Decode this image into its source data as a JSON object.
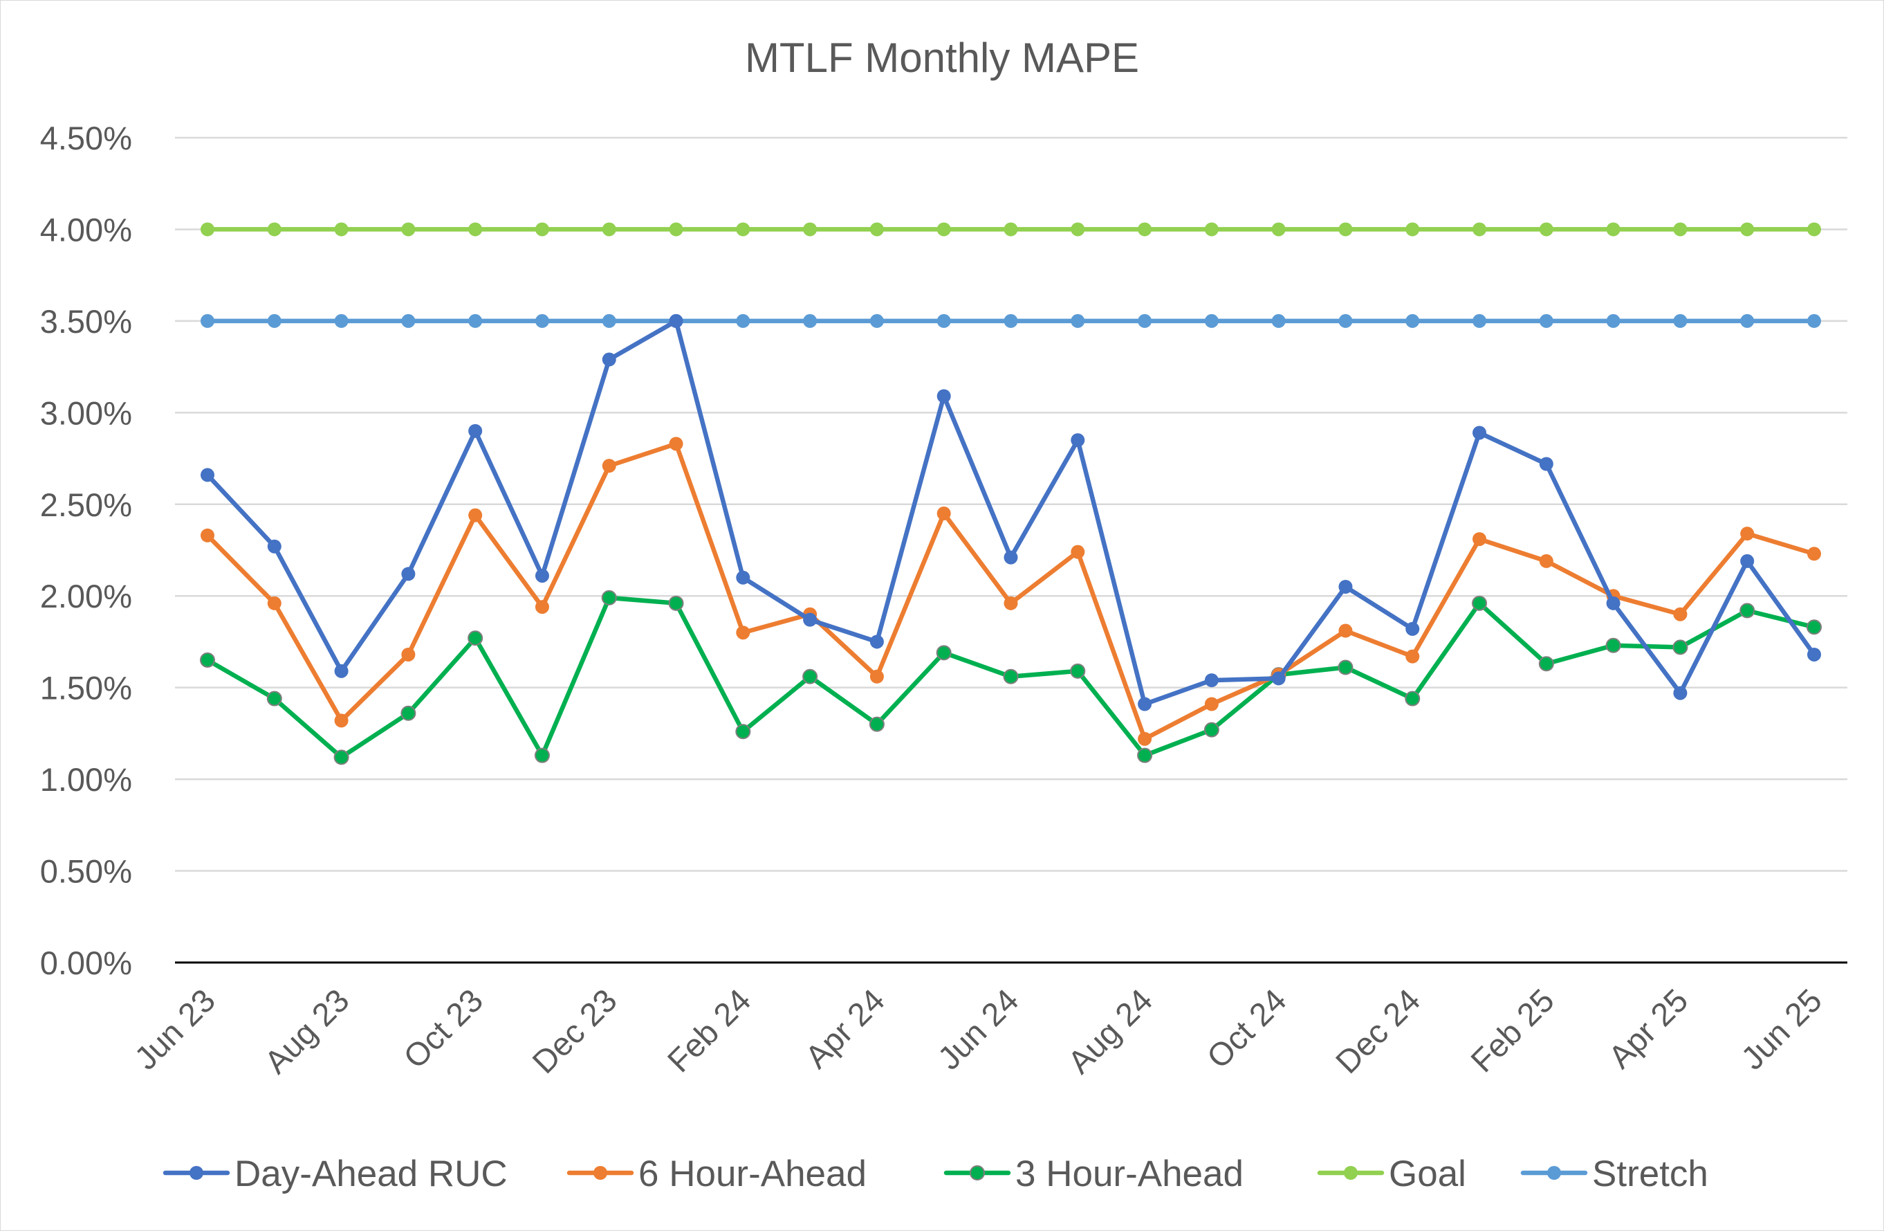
{
  "chart_data": {
    "type": "line",
    "title": "MTLF Monthly MAPE",
    "xlabel": "",
    "ylabel": "",
    "ylim": [
      0,
      4.5
    ],
    "y_ticks": [
      "0.00%",
      "0.50%",
      "1.00%",
      "1.50%",
      "2.00%",
      "2.50%",
      "3.00%",
      "3.50%",
      "4.00%",
      "4.50%"
    ],
    "y_tick_values": [
      0,
      0.5,
      1.0,
      1.5,
      2.0,
      2.5,
      3.0,
      3.5,
      4.0,
      4.5
    ],
    "x_tick_labels": [
      "Jun 23",
      "Aug 23",
      "Oct 23",
      "Dec 23",
      "Feb 24",
      "Apr 24",
      "Jun 24",
      "Aug 24",
      "Oct 24",
      "Dec 24",
      "Feb 25",
      "Apr 25",
      "Jun 25"
    ],
    "x_tick_index": [
      0,
      2,
      4,
      6,
      8,
      10,
      12,
      14,
      16,
      18,
      20,
      22,
      24
    ],
    "categories": [
      "Jun 23",
      "Jul 23",
      "Aug 23",
      "Sep 23",
      "Oct 23",
      "Nov 23",
      "Dec 23",
      "Jan 24",
      "Feb 24",
      "Mar 24",
      "Apr 24",
      "May 24",
      "Jun 24",
      "Jul 24",
      "Aug 24",
      "Sep 24",
      "Oct 24",
      "Nov 24",
      "Dec 24",
      "Jan 25",
      "Feb 25",
      "Mar 25",
      "Apr 25",
      "May 25",
      "Jun 25"
    ],
    "grid": true,
    "legend_position": "bottom",
    "series": [
      {
        "name": "Day-Ahead RUC",
        "color": "#4472C4",
        "values": [
          2.66,
          2.27,
          1.59,
          2.12,
          2.9,
          2.11,
          3.29,
          3.5,
          2.1,
          1.87,
          1.75,
          3.09,
          2.21,
          2.85,
          1.41,
          1.54,
          1.55,
          2.05,
          1.82,
          2.89,
          2.72,
          1.96,
          1.47,
          2.19,
          1.68
        ]
      },
      {
        "name": "6 Hour-Ahead",
        "color": "#ED7D31",
        "values": [
          2.33,
          1.96,
          1.32,
          1.68,
          2.44,
          1.94,
          2.71,
          2.83,
          1.8,
          1.9,
          1.56,
          2.45,
          1.96,
          2.24,
          1.22,
          1.41,
          1.57,
          1.81,
          1.67,
          2.31,
          2.19,
          2.0,
          1.9,
          2.34,
          2.23
        ]
      },
      {
        "name": "3 Hour-Ahead",
        "color": "#00B050",
        "values": [
          1.65,
          1.44,
          1.12,
          1.36,
          1.77,
          1.13,
          1.99,
          1.96,
          1.26,
          1.56,
          1.3,
          1.69,
          1.56,
          1.59,
          1.13,
          1.27,
          1.57,
          1.61,
          1.44,
          1.96,
          1.63,
          1.73,
          1.72,
          1.92,
          1.83
        ]
      },
      {
        "name": "Goal",
        "color": "#92D050",
        "values": [
          4.0,
          4.0,
          4.0,
          4.0,
          4.0,
          4.0,
          4.0,
          4.0,
          4.0,
          4.0,
          4.0,
          4.0,
          4.0,
          4.0,
          4.0,
          4.0,
          4.0,
          4.0,
          4.0,
          4.0,
          4.0,
          4.0,
          4.0,
          4.0,
          4.0
        ]
      },
      {
        "name": "Stretch",
        "color": "#5B9BD5",
        "values": [
          3.5,
          3.5,
          3.5,
          3.5,
          3.5,
          3.5,
          3.5,
          3.5,
          3.5,
          3.5,
          3.5,
          3.5,
          3.5,
          3.5,
          3.5,
          3.5,
          3.5,
          3.5,
          3.5,
          3.5,
          3.5,
          3.5,
          3.5,
          3.5,
          3.5
        ]
      }
    ]
  }
}
